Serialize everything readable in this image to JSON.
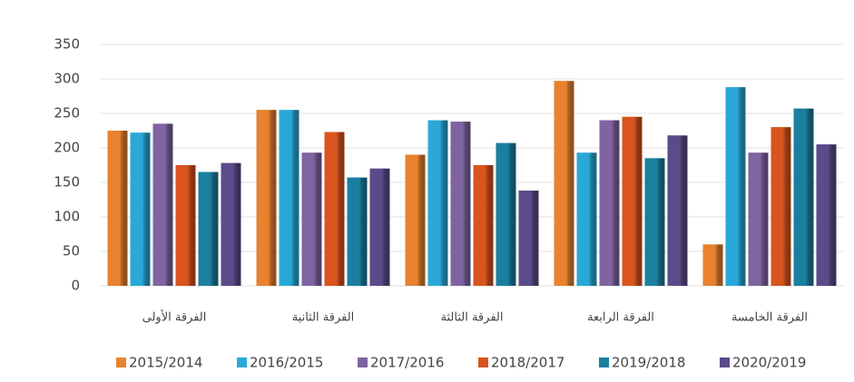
{
  "chart_data": {
    "type": "bar",
    "categories": [
      "الفرقة الأولى",
      "الفرقة الثانية",
      "الفرقة الثالثة",
      "الفرقة الرابعة",
      "الفرقة الخامسة"
    ],
    "series": [
      {
        "name": "2015/2014",
        "color": "#e8822f",
        "values": [
          225,
          255,
          190,
          297,
          60
        ]
      },
      {
        "name": "2016/2015",
        "color": "#2aa9d8",
        "values": [
          222,
          255,
          240,
          193,
          288
        ]
      },
      {
        "name": "2017/2016",
        "color": "#8064a2",
        "values": [
          235,
          193,
          238,
          240,
          193
        ]
      },
      {
        "name": "2018/2017",
        "color": "#d9541e",
        "values": [
          175,
          223,
          175,
          245,
          230
        ]
      },
      {
        "name": "2019/2018",
        "color": "#1b7fa0",
        "values": [
          165,
          157,
          207,
          185,
          257
        ]
      },
      {
        "name": "2020/2019",
        "color": "#5b4b8a",
        "values": [
          178,
          170,
          138,
          218,
          205
        ]
      }
    ],
    "ylim": [
      0,
      350
    ],
    "yticks": [
      0,
      50,
      100,
      150,
      200,
      250,
      300,
      350
    ],
    "grid": true,
    "legend": "bottom"
  }
}
